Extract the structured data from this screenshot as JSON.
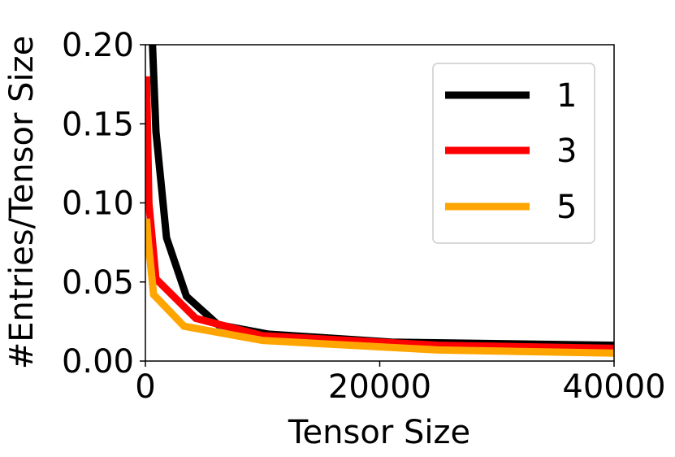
{
  "chart_data": {
    "type": "line",
    "title": "",
    "xlabel": "Tensor Size",
    "ylabel": "#Entries/Tensor Size",
    "xlim": [
      0,
      40000
    ],
    "ylim": [
      0.0,
      0.2
    ],
    "xticks": [
      0,
      20000,
      40000
    ],
    "xtick_labels": [
      "0",
      "20000",
      "40000"
    ],
    "yticks": [
      0.0,
      0.05,
      0.1,
      0.15,
      0.2
    ],
    "ytick_labels": [
      "0.00",
      "0.05",
      "0.10",
      "0.15",
      "0.20"
    ],
    "grid": false,
    "legend_position": "top-right",
    "series": [
      {
        "name": "1",
        "color": "#000000",
        "x": [
          500,
          900,
          1800,
          3500,
          6200,
          10500,
          21000,
          40000
        ],
        "y": [
          0.22,
          0.145,
          0.078,
          0.041,
          0.023,
          0.017,
          0.012,
          0.01
        ]
      },
      {
        "name": "3",
        "color": "#ff0000",
        "x": [
          100,
          300,
          900,
          4300,
          10000,
          25000,
          40000
        ],
        "y": [
          0.18,
          0.1,
          0.052,
          0.027,
          0.016,
          0.01,
          0.008
        ]
      },
      {
        "name": "5",
        "color": "#ffa500",
        "x": [
          100,
          250,
          700,
          3300,
          10000,
          25000,
          40000
        ],
        "y": [
          0.09,
          0.075,
          0.042,
          0.022,
          0.013,
          0.007,
          0.005
        ]
      }
    ]
  }
}
